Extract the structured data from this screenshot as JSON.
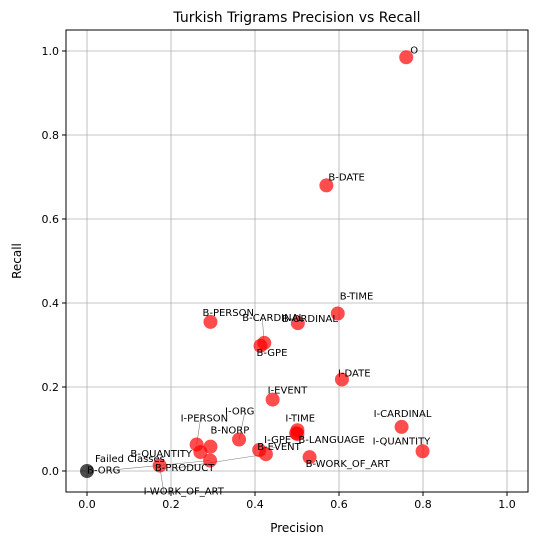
{
  "chart_data": {
    "type": "scatter",
    "title": "Turkish Trigrams Precision vs Recall",
    "xlabel": "Precision",
    "ylabel": "Recall",
    "xlim": [
      -0.05,
      1.05
    ],
    "ylim": [
      -0.05,
      1.05
    ],
    "xticks": [
      "0.0",
      "0.2",
      "0.4",
      "0.6",
      "0.8",
      "1.0"
    ],
    "yticks": [
      "0.0",
      "0.2",
      "0.4",
      "0.6",
      "0.8",
      "1.0"
    ],
    "grid": true,
    "colors": {
      "points": "#ff0000",
      "failed": "#000000",
      "grid": "#b0b0b0",
      "leader": "#808080"
    },
    "points": [
      {
        "label": "O",
        "x": 0.76,
        "y": 0.985
      },
      {
        "label": "B-DATE",
        "x": 0.57,
        "y": 0.68
      },
      {
        "label": "B-TIME",
        "x": 0.597,
        "y": 0.375
      },
      {
        "label": "B-ORDINAL",
        "x": 0.502,
        "y": 0.352
      },
      {
        "label": "B-PERSON",
        "x": 0.294,
        "y": 0.355
      },
      {
        "label": "B-CARDINAL",
        "x": 0.422,
        "y": 0.305
      },
      {
        "label": "B-GPE",
        "x": 0.413,
        "y": 0.298
      },
      {
        "label": "I-DATE",
        "x": 0.607,
        "y": 0.218
      },
      {
        "label": "I-EVENT",
        "x": 0.442,
        "y": 0.17
      },
      {
        "label": "I-CARDINAL",
        "x": 0.749,
        "y": 0.105
      },
      {
        "label": "I-TIME",
        "x": 0.501,
        "y": 0.097
      },
      {
        "label": "I-GPE",
        "x": 0.498,
        "y": 0.09
      },
      {
        "label": "B-LANGUAGE",
        "x": 0.501,
        "y": 0.088
      },
      {
        "label": "I-ORG",
        "x": 0.362,
        "y": 0.075
      },
      {
        "label": "I-PERSON",
        "x": 0.261,
        "y": 0.063
      },
      {
        "label": "B-NORP",
        "x": 0.294,
        "y": 0.058
      },
      {
        "label": "I-QUANTITY",
        "x": 0.799,
        "y": 0.047
      },
      {
        "label": "B-EVENT",
        "x": 0.41,
        "y": 0.05
      },
      {
        "label": "B-QUANTITY",
        "x": 0.27,
        "y": 0.045
      },
      {
        "label": "B-PRODUCT",
        "x": 0.426,
        "y": 0.04
      },
      {
        "label": "B-WORK_OF_ART",
        "x": 0.53,
        "y": 0.033
      },
      {
        "label": "B-ORG",
        "x": 0.293,
        "y": 0.025
      },
      {
        "label": "I-WORK_OF_ART",
        "x": 0.173,
        "y": 0.013
      }
    ],
    "failed": {
      "label": "Failed Classes",
      "x": 0.0,
      "y": 0.0
    }
  }
}
